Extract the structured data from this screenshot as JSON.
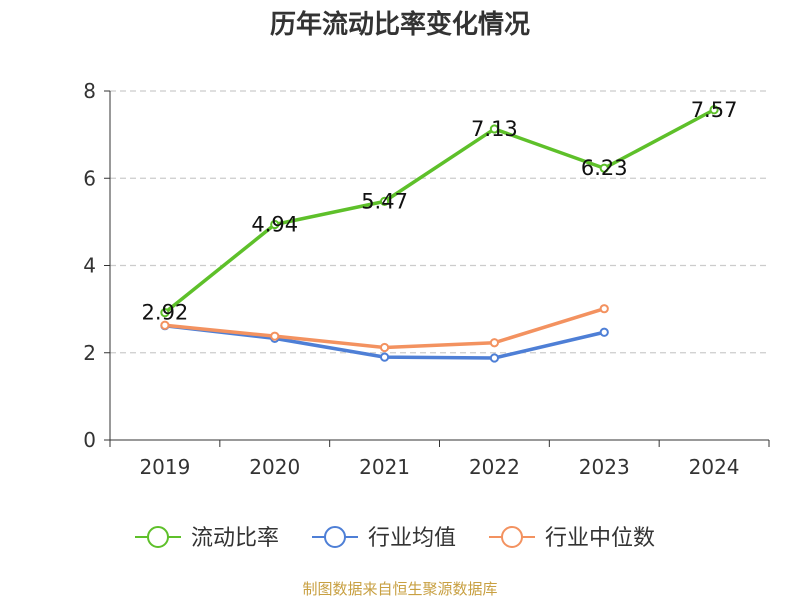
{
  "title": "历年流动比率变化情况",
  "footer": "制图数据来自恒生聚源数据库",
  "colors": {
    "current_ratio": "#5ec02a",
    "industry_avg": "#4e7fd6",
    "industry_median": "#f39260",
    "grid": "#cccccc",
    "axis": "#333333",
    "footer": "#c8a042"
  },
  "chart_data": {
    "type": "line",
    "title": "历年流动比率变化情况",
    "categories": [
      "2019",
      "2020",
      "2021",
      "2022",
      "2023",
      "2024"
    ],
    "ylim": [
      0,
      8
    ],
    "yticks": [
      0,
      2,
      4,
      6,
      8
    ],
    "grid": true,
    "legend_position": "bottom",
    "series": [
      {
        "name": "流动比率",
        "values": [
          2.92,
          4.94,
          5.47,
          7.13,
          6.23,
          7.57
        ],
        "labels": [
          "2.92",
          "4.94",
          "5.47",
          "7.13",
          "6.23",
          "7.57"
        ]
      },
      {
        "name": "行业均值",
        "values": [
          2.62,
          2.33,
          1.9,
          1.88,
          2.47,
          null
        ]
      },
      {
        "name": "行业中位数",
        "values": [
          2.63,
          2.38,
          2.12,
          2.23,
          3.01,
          null
        ]
      }
    ]
  }
}
